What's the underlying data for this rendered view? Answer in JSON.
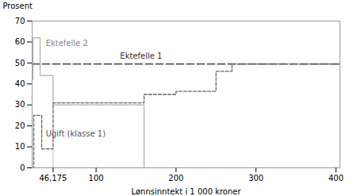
{
  "chart_data": {
    "type": "line",
    "xlabel": "Lønnsinntekt i 1 000 kroner",
    "ylabel": "Prosent",
    "xlim": [
      20,
      405
    ],
    "ylim": [
      0,
      70
    ],
    "xticks": [
      {
        "value": 46.175,
        "label": "46,175"
      },
      100,
      200,
      300,
      400
    ],
    "yticks": [
      0,
      10,
      20,
      30,
      40,
      50,
      60,
      70
    ],
    "grid": false,
    "series": [
      {
        "color": "#555555",
        "line_style": "longdash",
        "x": [
          20,
          405
        ],
        "values": [
          49.5,
          49.5
        ]
      },
      {
        "color": "#b0b0b0",
        "line_style": "solid",
        "x": [
          20,
          21,
          21,
          30,
          30,
          46.175,
          46.175,
          160,
          160
        ],
        "values": [
          42,
          42,
          62,
          62,
          44,
          44,
          30,
          30,
          0
        ]
      },
      {
        "color": "#666666",
        "line_style": "dashed",
        "x": [
          20,
          22,
          22,
          32,
          32,
          46.175,
          46.175,
          160,
          160,
          200,
          200,
          250,
          250,
          270,
          270,
          405
        ],
        "values": [
          0,
          0,
          25,
          25,
          9,
          9,
          31,
          31,
          35,
          35,
          36.5,
          36.5,
          46,
          46,
          49.5,
          49.5
        ]
      },
      {
        "color": "#999999",
        "line_style": "dotted",
        "x": [
          46.175,
          46.175
        ],
        "values": [
          0,
          31
        ]
      }
    ],
    "annotations": [
      {
        "text": "Ektefelle 1",
        "x": 130,
        "y": 52,
        "color": "#333333"
      },
      {
        "text": "Ektefelle 2",
        "x": 37,
        "y": 58,
        "color": "#888888"
      },
      {
        "text": "Ugift (klasse 1)",
        "x": 37,
        "y": 15,
        "color": "#555555"
      }
    ]
  }
}
